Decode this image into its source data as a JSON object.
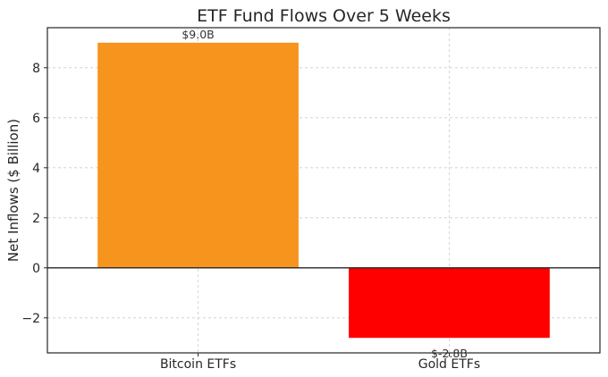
{
  "chart_data": {
    "type": "bar",
    "title": "ETF Fund Flows Over 5 Weeks",
    "xlabel": "",
    "ylabel": "Net Inflows ($ Billion)",
    "categories": [
      "Bitcoin ETFs",
      "Gold ETFs"
    ],
    "values": [
      9.0,
      -2.8
    ],
    "value_labels": [
      "$9.0B",
      "$-2.8B"
    ],
    "colors": [
      "#f7941d",
      "#ff0000"
    ],
    "ylim": [
      -3.4,
      9.6
    ],
    "yticks": [
      -2,
      0,
      2,
      4,
      6,
      8
    ],
    "ytick_labels": [
      "−2",
      "0",
      "2",
      "4",
      "6",
      "8"
    ],
    "grid": true,
    "legend": "none"
  }
}
